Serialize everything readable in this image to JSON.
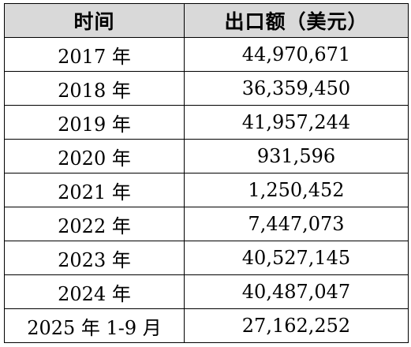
{
  "table": {
    "headers": {
      "time": "时间",
      "export": "出口额（美元）"
    },
    "rows": [
      {
        "time": "2017 年",
        "value": "44,970,671"
      },
      {
        "time": "2018 年",
        "value": "36,359,450"
      },
      {
        "time": "2019 年",
        "value": "41,957,244"
      },
      {
        "time": "2020 年",
        "value": "931,596"
      },
      {
        "time": "2021 年",
        "value": "1,250,452"
      },
      {
        "time": "2022 年",
        "value": "7,447,073"
      },
      {
        "time": "2023 年",
        "value": "40,527,145"
      },
      {
        "time": "2024 年",
        "value": "40,487,047"
      },
      {
        "time": "2025 年 1-9 月",
        "value": "27,162,252"
      }
    ]
  },
  "colors": {
    "header_background": "#d9d9d9",
    "border": "#000000",
    "text": "#000000"
  }
}
